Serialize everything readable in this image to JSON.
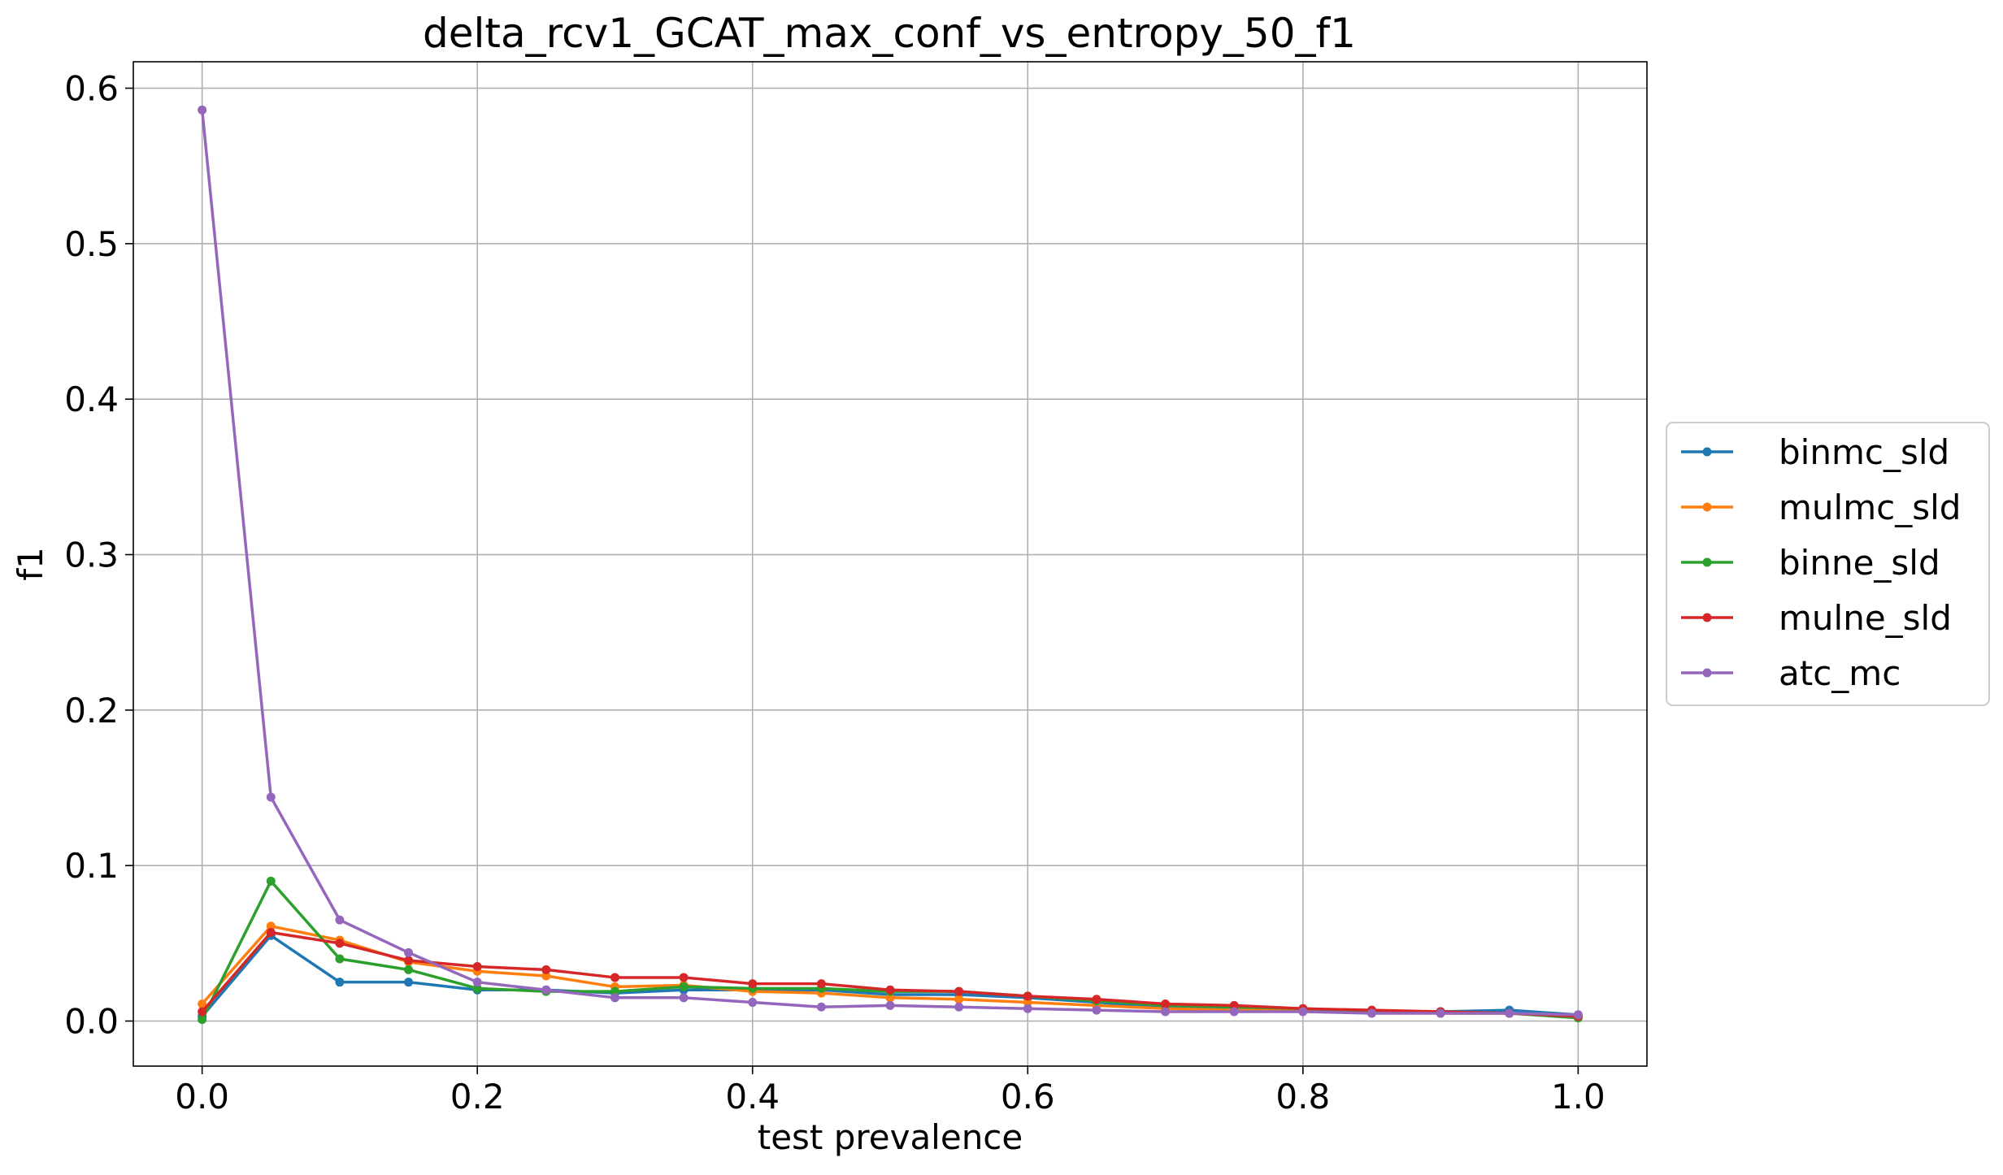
{
  "chart_data": {
    "type": "line",
    "title": "delta_rcv1_GCAT_max_conf_vs_entropy_50_f1",
    "xlabel": "test prevalence",
    "ylabel": "f1",
    "xlim": [
      -0.05,
      1.05
    ],
    "ylim": [
      -0.029,
      0.617
    ],
    "xticks": [
      0.0,
      0.2,
      0.4,
      0.6,
      0.8,
      1.0
    ],
    "xtick_labels": [
      "0.0",
      "0.2",
      "0.4",
      "0.6",
      "0.8",
      "1.0"
    ],
    "yticks": [
      0.0,
      0.1,
      0.2,
      0.3,
      0.4,
      0.5,
      0.6
    ],
    "ytick_labels": [
      "0.0",
      "0.1",
      "0.2",
      "0.3",
      "0.4",
      "0.5",
      "0.6"
    ],
    "grid": true,
    "legend_position": "center-right-outside",
    "x": [
      0.0,
      0.05,
      0.1,
      0.15,
      0.2,
      0.25,
      0.3,
      0.35,
      0.4,
      0.45,
      0.5,
      0.55,
      0.6,
      0.65,
      0.7,
      0.75,
      0.8,
      0.85,
      0.9,
      0.95,
      1.0
    ],
    "series": [
      {
        "name": "binmc_sld",
        "color": "#1f77b4",
        "values": [
          0.003,
          0.055,
          0.025,
          0.025,
          0.02,
          0.02,
          0.018,
          0.02,
          0.02,
          0.02,
          0.017,
          0.017,
          0.015,
          0.012,
          0.009,
          0.008,
          0.007,
          0.006,
          0.006,
          0.007,
          0.004
        ]
      },
      {
        "name": "mulmc_sld",
        "color": "#ff7f0e",
        "values": [
          0.011,
          0.061,
          0.052,
          0.038,
          0.032,
          0.029,
          0.022,
          0.023,
          0.019,
          0.018,
          0.015,
          0.014,
          0.012,
          0.01,
          0.008,
          0.007,
          0.007,
          0.006,
          0.005,
          0.005,
          0.003
        ]
      },
      {
        "name": "binne_sld",
        "color": "#2ca02c",
        "values": [
          0.001,
          0.09,
          0.04,
          0.033,
          0.021,
          0.019,
          0.019,
          0.022,
          0.021,
          0.021,
          0.019,
          0.019,
          0.016,
          0.013,
          0.01,
          0.009,
          0.008,
          0.006,
          0.006,
          0.005,
          0.002
        ]
      },
      {
        "name": "mulne_sld",
        "color": "#d62728",
        "values": [
          0.006,
          0.057,
          0.05,
          0.039,
          0.035,
          0.033,
          0.028,
          0.028,
          0.024,
          0.024,
          0.02,
          0.019,
          0.016,
          0.014,
          0.011,
          0.01,
          0.008,
          0.007,
          0.006,
          0.005,
          0.003
        ]
      },
      {
        "name": "atc_mc",
        "color": "#9467bd",
        "values": [
          0.586,
          0.144,
          0.065,
          0.044,
          0.025,
          0.02,
          0.015,
          0.015,
          0.012,
          0.009,
          0.01,
          0.009,
          0.008,
          0.007,
          0.006,
          0.006,
          0.006,
          0.005,
          0.005,
          0.005,
          0.004
        ]
      }
    ]
  }
}
